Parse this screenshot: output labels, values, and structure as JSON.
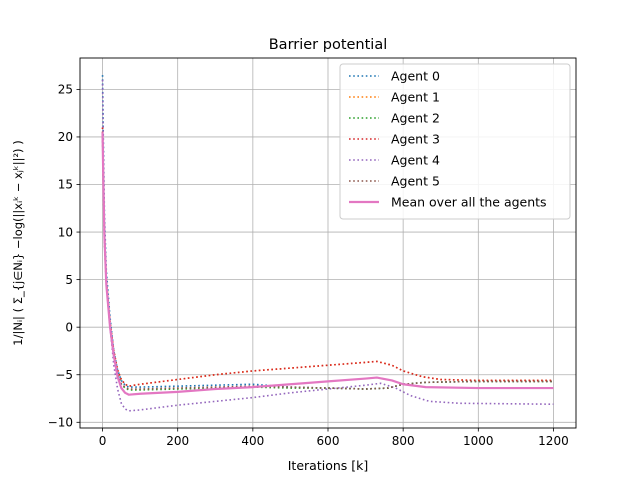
{
  "chart_data": {
    "type": "line",
    "title": "Barrier potential",
    "xlabel": "Iterations [k]",
    "ylabel": "1/|Nᵢ| ( Σ_{j∈Nᵢ} −log(||xᵢᵏ − xⱼᵏ||²) )",
    "xlim": [
      -60,
      1260
    ],
    "ylim": [
      -10.6,
      28.3
    ],
    "xticks": [
      0,
      200,
      400,
      600,
      800,
      1000,
      1200
    ],
    "yticks": [
      -10,
      -5,
      0,
      5,
      10,
      15,
      20,
      25
    ],
    "grid": true,
    "legend_position": "top-right",
    "series": [
      {
        "name": "Agent 0",
        "color": "#1f77b4",
        "style": "dotted",
        "points": [
          [
            0,
            26.5
          ],
          [
            2,
            20
          ],
          [
            5,
            12
          ],
          [
            10,
            6
          ],
          [
            20,
            1
          ],
          [
            30,
            -2.5
          ],
          [
            40,
            -4.5
          ],
          [
            50,
            -5.6
          ],
          [
            60,
            -6.1
          ],
          [
            70,
            -6.3
          ],
          [
            100,
            -6.3
          ],
          [
            200,
            -6.2
          ],
          [
            300,
            -6.1
          ],
          [
            400,
            -6.0
          ],
          [
            500,
            -6.3
          ],
          [
            600,
            -6.4
          ],
          [
            700,
            -6.5
          ],
          [
            760,
            -6.4
          ],
          [
            800,
            -6.0
          ],
          [
            860,
            -5.8
          ],
          [
            1000,
            -5.7
          ],
          [
            1200,
            -5.7
          ]
        ]
      },
      {
        "name": "Agent 1",
        "color": "#ff7f0e",
        "style": "dotted",
        "points": [
          [
            0,
            21
          ],
          [
            2,
            16
          ],
          [
            5,
            10
          ],
          [
            10,
            5
          ],
          [
            20,
            0.5
          ],
          [
            30,
            -2.5
          ],
          [
            40,
            -4.5
          ],
          [
            50,
            -5.5
          ],
          [
            60,
            -6.0
          ],
          [
            70,
            -6.2
          ],
          [
            100,
            -6.0
          ],
          [
            200,
            -5.5
          ],
          [
            300,
            -5.0
          ],
          [
            400,
            -4.6
          ],
          [
            500,
            -4.3
          ],
          [
            600,
            -4.0
          ],
          [
            700,
            -3.7
          ],
          [
            730,
            -3.6
          ],
          [
            770,
            -4.0
          ],
          [
            800,
            -4.6
          ],
          [
            850,
            -5.2
          ],
          [
            900,
            -5.5
          ],
          [
            1000,
            -5.6
          ],
          [
            1200,
            -5.6
          ]
        ]
      },
      {
        "name": "Agent 2",
        "color": "#2ca02c",
        "style": "dotted",
        "points": [
          [
            0,
            20
          ],
          [
            2,
            15
          ],
          [
            5,
            9
          ],
          [
            10,
            4.5
          ],
          [
            20,
            0
          ],
          [
            30,
            -3
          ],
          [
            40,
            -5
          ],
          [
            50,
            -6
          ],
          [
            60,
            -6.4
          ],
          [
            70,
            -6.6
          ],
          [
            100,
            -6.6
          ],
          [
            200,
            -6.5
          ],
          [
            300,
            -6.4
          ],
          [
            400,
            -6.3
          ],
          [
            500,
            -6.4
          ],
          [
            600,
            -6.4
          ],
          [
            700,
            -6.5
          ],
          [
            760,
            -6.4
          ],
          [
            800,
            -6.0
          ],
          [
            860,
            -5.8
          ],
          [
            1000,
            -5.7
          ],
          [
            1200,
            -5.7
          ]
        ]
      },
      {
        "name": "Agent 3",
        "color": "#d62728",
        "style": "dotted",
        "points": [
          [
            0,
            21
          ],
          [
            2,
            16
          ],
          [
            5,
            10
          ],
          [
            10,
            5
          ],
          [
            20,
            0.5
          ],
          [
            30,
            -2.5
          ],
          [
            40,
            -4.5
          ],
          [
            50,
            -5.5
          ],
          [
            60,
            -6.0
          ],
          [
            70,
            -6.2
          ],
          [
            100,
            -6.0
          ],
          [
            200,
            -5.5
          ],
          [
            300,
            -5.0
          ],
          [
            400,
            -4.6
          ],
          [
            500,
            -4.3
          ],
          [
            600,
            -4.0
          ],
          [
            700,
            -3.7
          ],
          [
            730,
            -3.6
          ],
          [
            770,
            -4.0
          ],
          [
            800,
            -4.6
          ],
          [
            850,
            -5.2
          ],
          [
            900,
            -5.5
          ],
          [
            1000,
            -5.6
          ],
          [
            1200,
            -5.6
          ]
        ]
      },
      {
        "name": "Agent 4",
        "color": "#9467bd",
        "style": "dotted",
        "points": [
          [
            0,
            26
          ],
          [
            2,
            19
          ],
          [
            5,
            11
          ],
          [
            10,
            5
          ],
          [
            20,
            0
          ],
          [
            30,
            -4
          ],
          [
            40,
            -6.5
          ],
          [
            50,
            -8
          ],
          [
            60,
            -8.6
          ],
          [
            70,
            -8.8
          ],
          [
            100,
            -8.7
          ],
          [
            200,
            -8.2
          ],
          [
            300,
            -7.8
          ],
          [
            400,
            -7.4
          ],
          [
            500,
            -6.9
          ],
          [
            600,
            -6.5
          ],
          [
            700,
            -6.1
          ],
          [
            740,
            -5.9
          ],
          [
            780,
            -6.4
          ],
          [
            820,
            -7.2
          ],
          [
            870,
            -7.8
          ],
          [
            950,
            -8.0
          ],
          [
            1200,
            -8.1
          ]
        ]
      },
      {
        "name": "Agent 5",
        "color": "#8c564b",
        "style": "dotted",
        "points": [
          [
            0,
            20.5
          ],
          [
            2,
            15
          ],
          [
            5,
            9
          ],
          [
            10,
            4.5
          ],
          [
            20,
            0
          ],
          [
            30,
            -3
          ],
          [
            40,
            -5
          ],
          [
            50,
            -6
          ],
          [
            60,
            -6.3
          ],
          [
            70,
            -6.5
          ],
          [
            100,
            -6.5
          ],
          [
            200,
            -6.4
          ],
          [
            300,
            -6.3
          ],
          [
            400,
            -6.2
          ],
          [
            500,
            -6.3
          ],
          [
            600,
            -6.4
          ],
          [
            700,
            -6.5
          ],
          [
            760,
            -6.4
          ],
          [
            800,
            -6.0
          ],
          [
            860,
            -5.8
          ],
          [
            1000,
            -5.7
          ],
          [
            1200,
            -5.7
          ]
        ]
      },
      {
        "name": "Mean over all the agents",
        "color": "#e377c2",
        "style": "solid",
        "points": [
          [
            0,
            20.5
          ],
          [
            2,
            15.5
          ],
          [
            5,
            9.5
          ],
          [
            10,
            4.5
          ],
          [
            20,
            0
          ],
          [
            30,
            -3
          ],
          [
            40,
            -5.2
          ],
          [
            50,
            -6.4
          ],
          [
            60,
            -6.9
          ],
          [
            70,
            -7.1
          ],
          [
            100,
            -7.0
          ],
          [
            200,
            -6.8
          ],
          [
            300,
            -6.5
          ],
          [
            400,
            -6.3
          ],
          [
            500,
            -6.0
          ],
          [
            600,
            -5.7
          ],
          [
            700,
            -5.4
          ],
          [
            730,
            -5.3
          ],
          [
            770,
            -5.6
          ],
          [
            800,
            -6.0
          ],
          [
            860,
            -6.3
          ],
          [
            1000,
            -6.4
          ],
          [
            1200,
            -6.4
          ]
        ]
      }
    ]
  }
}
